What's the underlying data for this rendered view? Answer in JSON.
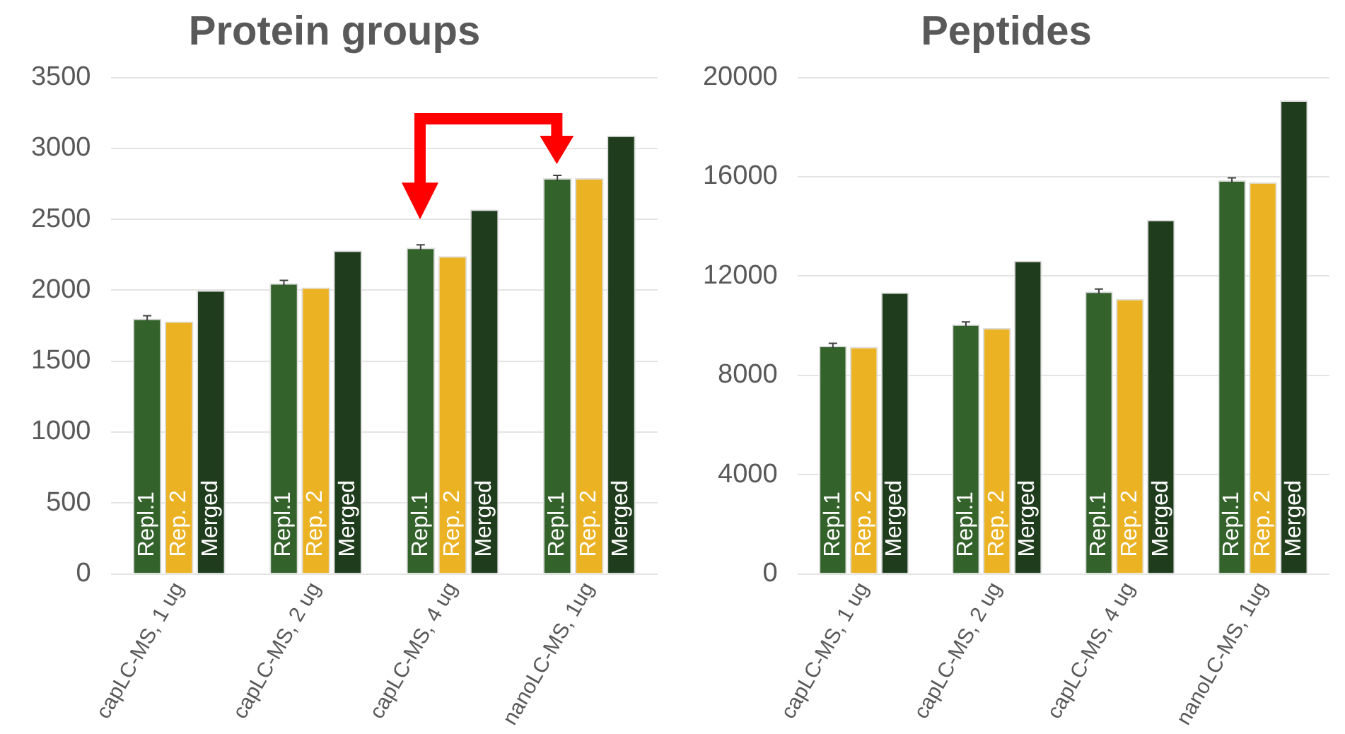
{
  "chart_data": [
    {
      "type": "bar",
      "title": "Protein groups",
      "categories": [
        "capLC-MS, 1 ug",
        "capLC-MS, 2 ug",
        "capLC-MS, 4 ug",
        "nanoLC-MS, 1ug"
      ],
      "series": [
        {
          "name": "Repl.1",
          "color": "#33632b",
          "values": [
            1800,
            2050,
            2300,
            2790
          ],
          "errors": [
            20,
            20,
            20,
            20
          ]
        },
        {
          "name": "Rep. 2",
          "color": "#ebb224",
          "values": [
            1780,
            2020,
            2240,
            2790
          ]
        },
        {
          "name": "Merged",
          "color": "#1f3d1c",
          "values": [
            2000,
            2280,
            2570,
            3090
          ]
        }
      ],
      "ylim": [
        0,
        3500
      ],
      "yticks": [
        0,
        500,
        1000,
        1500,
        2000,
        2500,
        3000,
        3500
      ],
      "grid": "y",
      "legend": false
    },
    {
      "type": "bar",
      "title": "Peptides",
      "categories": [
        "capLC-MS, 1 ug",
        "capLC-MS, 2 ug",
        "capLC-MS, 4 ug",
        "nanoLC-MS, 1ug"
      ],
      "series": [
        {
          "name": "Repl.1",
          "color": "#33632b",
          "values": [
            9190,
            10050,
            11380,
            15860
          ],
          "errors": [
            100,
            100,
            100,
            100
          ]
        },
        {
          "name": "Rep. 2",
          "color": "#ebb224",
          "values": [
            9150,
            9910,
            11080,
            15780
          ]
        },
        {
          "name": "Merged",
          "color": "#1f3d1c",
          "values": [
            11340,
            12620,
            14260,
            19080
          ]
        }
      ],
      "ylim": [
        0,
        20000
      ],
      "yticks": [
        0,
        4000,
        8000,
        12000,
        16000,
        20000
      ],
      "grid": "y",
      "legend": false
    }
  ]
}
